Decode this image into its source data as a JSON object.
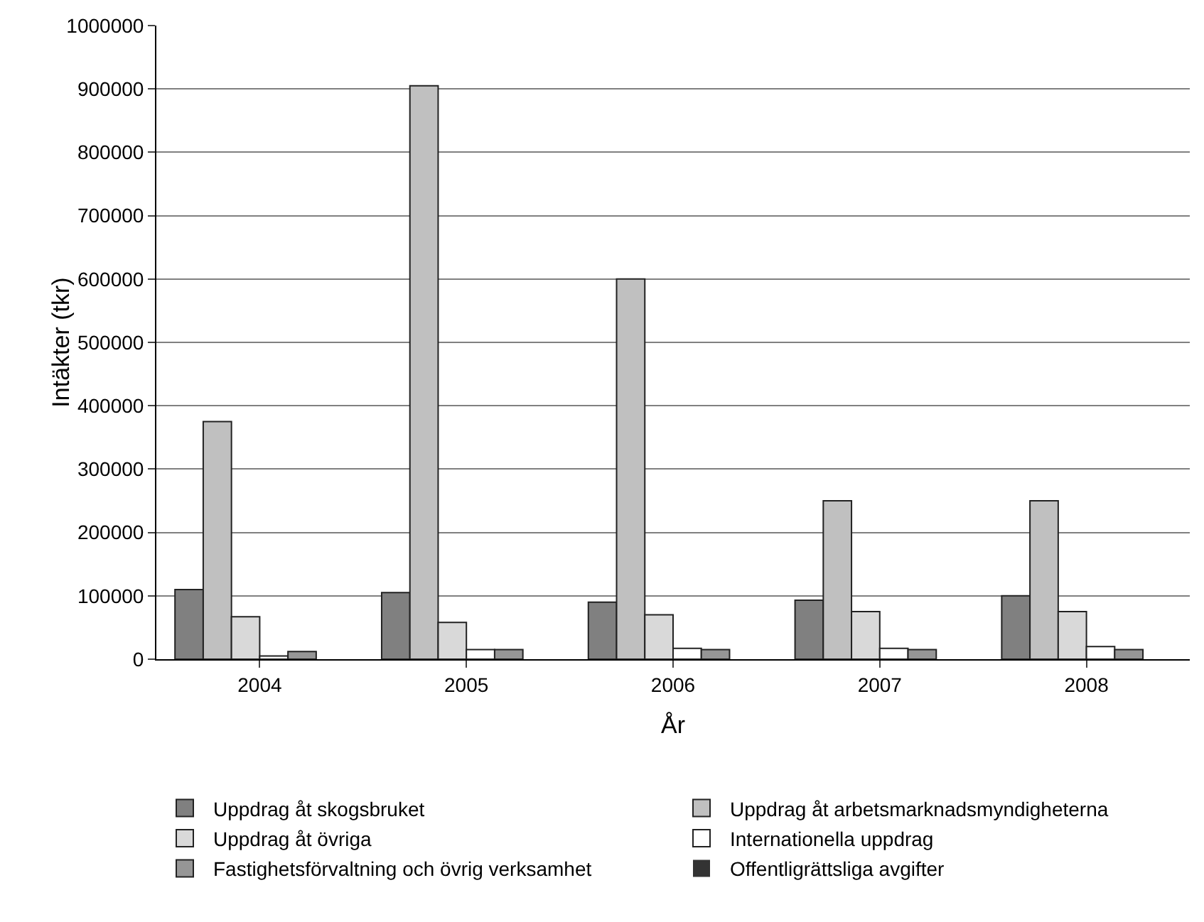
{
  "chart_data": {
    "type": "bar",
    "xlabel": "År",
    "ylabel": "Intäkter (tkr)",
    "categories": [
      "2004",
      "2005",
      "2006",
      "2007",
      "2008"
    ],
    "series": [
      {
        "name": "Uppdrag åt skogsbruket",
        "color": "#808080",
        "values": [
          110000,
          105000,
          90000,
          93000,
          100000
        ]
      },
      {
        "name": "Uppdrag åt arbetsmarknadsmyndigheterna",
        "color": "#c0c0c0",
        "values": [
          375000,
          905000,
          600000,
          250000,
          250000
        ]
      },
      {
        "name": "Uppdrag åt övriga",
        "color": "#d9d9d9",
        "values": [
          67000,
          58000,
          70000,
          75000,
          75000
        ]
      },
      {
        "name": "Internationella uppdrag",
        "color": "#ffffff",
        "values": [
          5000,
          15000,
          17000,
          17000,
          20000
        ]
      },
      {
        "name": "Fastighetsförvaltning och övrig verksamhet",
        "color": "#969696",
        "values": [
          12000,
          15000,
          15000,
          15000,
          15000
        ]
      },
      {
        "name": "Offentligrättsliga avgifter",
        "color": "#333333",
        "values": [
          0,
          0,
          0,
          0,
          0
        ]
      }
    ],
    "ylim": [
      0,
      1000000
    ],
    "yticks": [
      0,
      100000,
      200000,
      300000,
      400000,
      500000,
      600000,
      700000,
      800000,
      900000,
      1000000
    ],
    "grid": "y",
    "legend": "bottom"
  }
}
